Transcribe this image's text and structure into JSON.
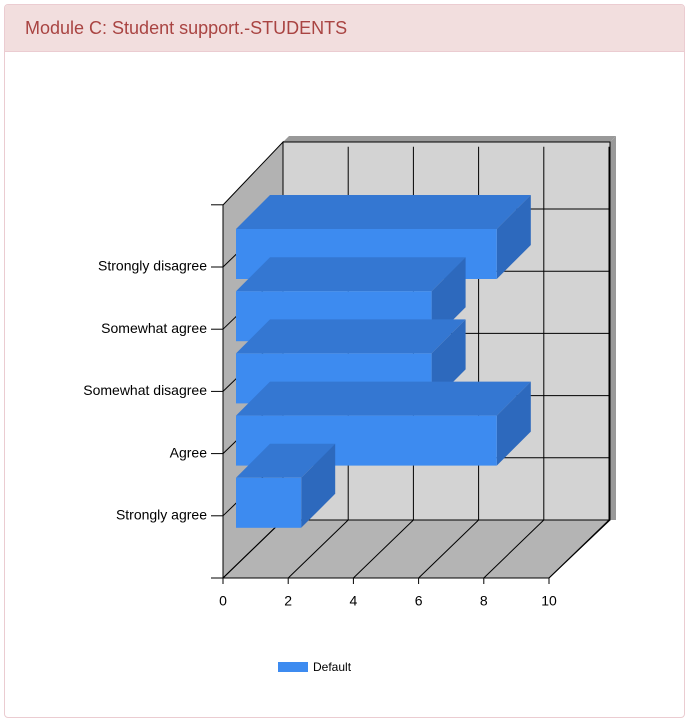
{
  "chart_data": {
    "type": "bar",
    "orientation": "horizontal",
    "title": "Module C: Student support.-STUDENTS",
    "categories": [
      "Strongly agree",
      "Agree",
      "Somewhat disagree",
      "Somewhat agree",
      "Strongly disagree"
    ],
    "series": [
      {
        "name": "Default",
        "color": "#3d8bf0",
        "values": [
          2,
          8,
          6,
          6,
          8
        ]
      }
    ],
    "xlim": [
      0,
      10
    ],
    "xticks": [
      0,
      2,
      4,
      6,
      8,
      10
    ],
    "grid": true
  }
}
